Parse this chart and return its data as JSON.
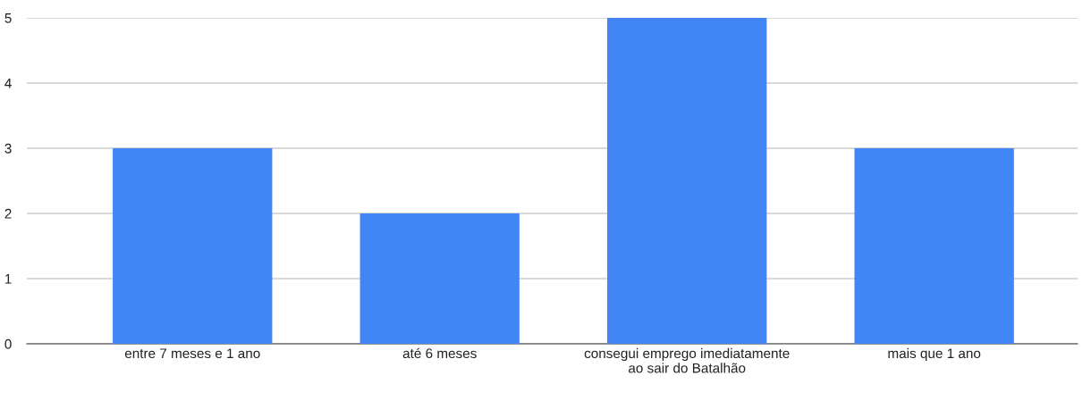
{
  "chart_data": {
    "type": "bar",
    "categories": [
      "entre 7 meses e 1 ano",
      "até 6 meses",
      "consegui emprego imediatamente ao sair do Batalhão",
      "mais que 1 ano"
    ],
    "values": [
      3,
      2,
      5,
      3
    ],
    "color": "#4285f4",
    "ylim": [
      0,
      5
    ],
    "yticks": [
      0,
      1,
      2,
      3,
      4,
      5
    ],
    "grid": "y",
    "legend": false
  }
}
